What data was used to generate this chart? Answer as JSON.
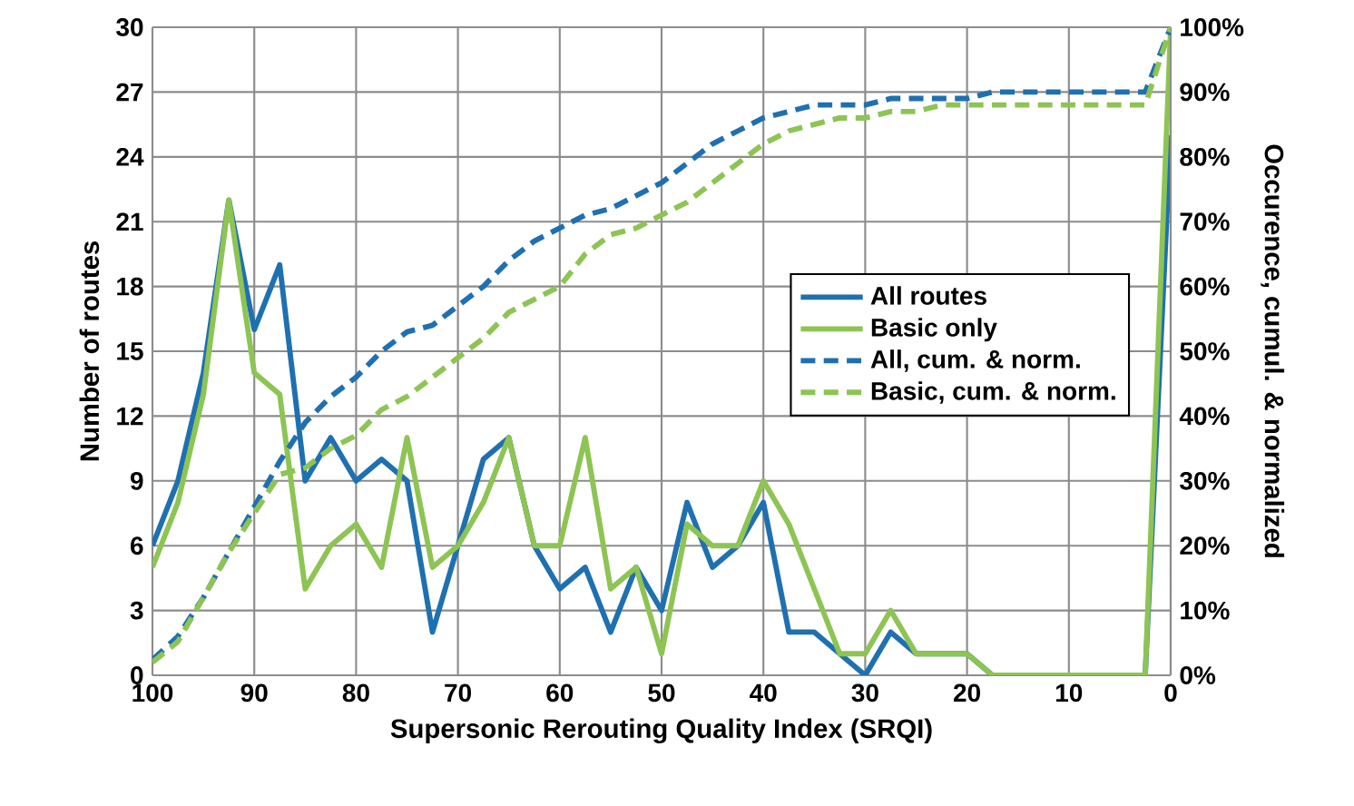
{
  "chart_data": {
    "type": "line",
    "xlabel": "Supersonic Rerouting Quality Index (SRQI)",
    "ylabel": "Number of routes",
    "y2label": "Occurence, cumul. & normalized",
    "x": [
      100,
      97.5,
      95,
      92.5,
      90,
      87.5,
      85,
      82.5,
      80,
      77.5,
      75,
      72.5,
      70,
      67.5,
      65,
      62.5,
      60,
      57.5,
      55,
      52.5,
      50,
      47.5,
      45,
      42.5,
      40,
      37.5,
      35,
      32.5,
      30,
      27.5,
      25,
      22.5,
      20,
      17.5,
      15,
      12.5,
      10,
      7.5,
      5,
      2.5,
      0
    ],
    "series": [
      {
        "name": "All routes",
        "color": "#1f70b0",
        "line_style": "solid",
        "axis": "y",
        "values": [
          6,
          9,
          14,
          22,
          16,
          19,
          9,
          11,
          9,
          10,
          9,
          2,
          6,
          10,
          11,
          6,
          4,
          5,
          2,
          5,
          3,
          8,
          5,
          6,
          8,
          2,
          2,
          1,
          0,
          2,
          1,
          1,
          1,
          0,
          0,
          0,
          0,
          0,
          0,
          0,
          25
        ]
      },
      {
        "name": "Basic only",
        "color": "#8dc453",
        "line_style": "solid",
        "axis": "y",
        "values": [
          5,
          8,
          13,
          22,
          14,
          13,
          4,
          6,
          7,
          5,
          11,
          5,
          6,
          8,
          11,
          6,
          6,
          11,
          4,
          5,
          1,
          7,
          6,
          6,
          9,
          7,
          4,
          1,
          1,
          3,
          1,
          1,
          1,
          0,
          0,
          0,
          0,
          0,
          0,
          0,
          30
        ]
      },
      {
        "name": "All, cum. & norm.",
        "color": "#1f70b0",
        "line_style": "dashed",
        "axis": "y2",
        "values": [
          2.4,
          6,
          12,
          19,
          26,
          33,
          39,
          43,
          46,
          50,
          53,
          54,
          57,
          60,
          64,
          67,
          69,
          71,
          72,
          74,
          76,
          79,
          82,
          84,
          86,
          87,
          88,
          88,
          88,
          89,
          89,
          89,
          89,
          90,
          90,
          90,
          90,
          90,
          90,
          90,
          100
        ]
      },
      {
        "name": "Basic, cum. & norm.",
        "color": "#8dc453",
        "line_style": "dashed",
        "axis": "y2",
        "values": [
          2,
          5.2,
          12,
          19,
          25,
          31,
          32,
          35,
          37,
          41,
          43,
          46,
          49,
          52,
          56,
          58,
          60,
          65,
          68,
          69,
          71,
          73,
          76,
          79,
          82,
          84,
          85,
          86,
          86,
          87,
          87,
          88,
          88,
          88,
          88,
          88,
          88,
          88,
          88,
          88,
          100
        ]
      }
    ],
    "xlim": [
      100,
      0
    ],
    "xticks": [
      100,
      90,
      80,
      70,
      60,
      50,
      40,
      30,
      20,
      10,
      0
    ],
    "ylim": [
      0,
      30
    ],
    "yticks": [
      0,
      3,
      6,
      9,
      12,
      15,
      18,
      21,
      24,
      27,
      30
    ],
    "y2lim": [
      0,
      100
    ],
    "y2ticks": [
      {
        "value": 0,
        "label": "0%"
      },
      {
        "value": 10,
        "label": "10%"
      },
      {
        "value": 20,
        "label": "20%"
      },
      {
        "value": 30,
        "label": "30%"
      },
      {
        "value": 40,
        "label": "40%"
      },
      {
        "value": 50,
        "label": "50%"
      },
      {
        "value": 60,
        "label": "60%"
      },
      {
        "value": 70,
        "label": "70%"
      },
      {
        "value": 80,
        "label": "80%"
      },
      {
        "value": 90,
        "label": "90%"
      },
      {
        "value": 100,
        "label": "100%"
      }
    ],
    "grid": true,
    "legend": "center right",
    "marker": "none"
  }
}
